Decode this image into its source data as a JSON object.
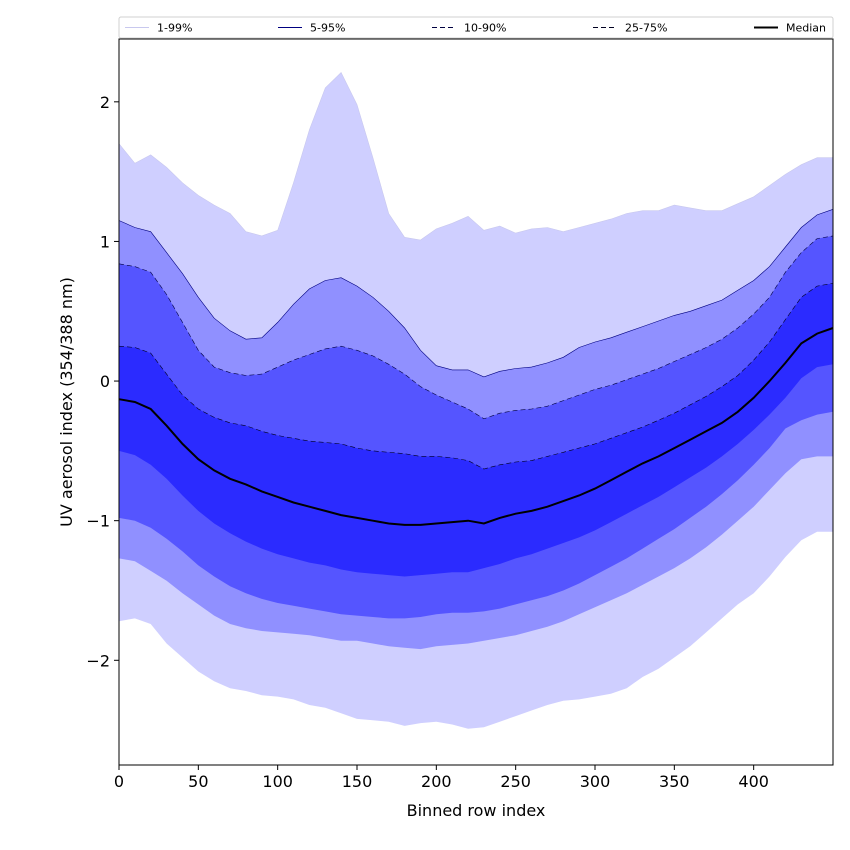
{
  "chart_data": {
    "type": "area",
    "title": "",
    "xlabel": "Binned row index",
    "ylabel": "UV aerosol index (354/388 nm)",
    "xlim": [
      0,
      450
    ],
    "ylim": [
      -2.75,
      2.45
    ],
    "x_ticks": [
      0,
      50,
      100,
      150,
      200,
      250,
      300,
      350,
      400
    ],
    "x_tick_labels": [
      "0",
      "50",
      "100",
      "150",
      "200",
      "250",
      "300",
      "350",
      "400"
    ],
    "y_ticks": [
      -2,
      -1,
      0,
      1,
      2
    ],
    "y_tick_labels": [
      "−2",
      "−1",
      "0",
      "1",
      "2"
    ],
    "grid": false,
    "legend_position": "top",
    "x": [
      0,
      10,
      20,
      30,
      40,
      50,
      60,
      70,
      80,
      90,
      100,
      110,
      120,
      130,
      140,
      150,
      160,
      170,
      180,
      190,
      200,
      210,
      220,
      230,
      240,
      250,
      260,
      270,
      280,
      290,
      300,
      310,
      320,
      330,
      340,
      350,
      360,
      370,
      380,
      390,
      400,
      410,
      420,
      430,
      440,
      450
    ],
    "series": [
      {
        "name": "1-99%",
        "color": "#cfcfff",
        "line_color": "#c8c8ee",
        "line_style": "solid",
        "upper": [
          1.7,
          1.56,
          1.62,
          1.53,
          1.42,
          1.33,
          1.26,
          1.2,
          1.07,
          1.04,
          1.08,
          1.42,
          1.8,
          2.1,
          2.21,
          1.98,
          1.6,
          1.2,
          1.03,
          1.01,
          1.09,
          1.13,
          1.18,
          1.08,
          1.11,
          1.06,
          1.09,
          1.1,
          1.07,
          1.1,
          1.13,
          1.16,
          1.2,
          1.22,
          1.22,
          1.26,
          1.24,
          1.22,
          1.22,
          1.27,
          1.32,
          1.4,
          1.48,
          1.55,
          1.6,
          1.6
        ],
        "lower": [
          -1.72,
          -1.7,
          -1.74,
          -1.88,
          -1.98,
          -2.08,
          -2.15,
          -2.2,
          -2.22,
          -2.25,
          -2.26,
          -2.28,
          -2.32,
          -2.34,
          -2.38,
          -2.42,
          -2.43,
          -2.44,
          -2.47,
          -2.45,
          -2.44,
          -2.46,
          -2.49,
          -2.48,
          -2.44,
          -2.4,
          -2.36,
          -2.32,
          -2.29,
          -2.28,
          -2.26,
          -2.24,
          -2.2,
          -2.12,
          -2.06,
          -1.98,
          -1.9,
          -1.8,
          -1.7,
          -1.6,
          -1.52,
          -1.4,
          -1.26,
          -1.14,
          -1.08,
          -1.08
        ]
      },
      {
        "name": "5-95%",
        "color": "#9090ff",
        "line_color": "#000080",
        "line_style": "solid",
        "upper": [
          1.15,
          1.1,
          1.07,
          0.92,
          0.77,
          0.6,
          0.45,
          0.36,
          0.3,
          0.31,
          0.42,
          0.55,
          0.66,
          0.72,
          0.74,
          0.68,
          0.6,
          0.5,
          0.38,
          0.22,
          0.11,
          0.08,
          0.08,
          0.03,
          0.07,
          0.09,
          0.1,
          0.13,
          0.17,
          0.24,
          0.28,
          0.31,
          0.35,
          0.39,
          0.43,
          0.47,
          0.5,
          0.54,
          0.58,
          0.65,
          0.72,
          0.82,
          0.96,
          1.1,
          1.19,
          1.23
        ],
        "lower": [
          -1.27,
          -1.29,
          -1.36,
          -1.43,
          -1.52,
          -1.6,
          -1.68,
          -1.74,
          -1.77,
          -1.79,
          -1.8,
          -1.81,
          -1.82,
          -1.84,
          -1.86,
          -1.86,
          -1.88,
          -1.9,
          -1.91,
          -1.92,
          -1.9,
          -1.89,
          -1.88,
          -1.86,
          -1.84,
          -1.82,
          -1.79,
          -1.76,
          -1.72,
          -1.67,
          -1.62,
          -1.57,
          -1.52,
          -1.46,
          -1.4,
          -1.34,
          -1.27,
          -1.19,
          -1.1,
          -1.0,
          -0.9,
          -0.78,
          -0.66,
          -0.56,
          -0.54,
          -0.54
        ]
      },
      {
        "name": "10-90%",
        "color": "#5555ff",
        "line_color": "#000040",
        "line_style": "dashed",
        "upper": [
          0.84,
          0.82,
          0.78,
          0.62,
          0.42,
          0.22,
          0.1,
          0.06,
          0.04,
          0.05,
          0.1,
          0.15,
          0.19,
          0.23,
          0.25,
          0.22,
          0.18,
          0.12,
          0.05,
          -0.04,
          -0.1,
          -0.15,
          -0.2,
          -0.27,
          -0.23,
          -0.21,
          -0.2,
          -0.18,
          -0.14,
          -0.1,
          -0.06,
          -0.03,
          0.01,
          0.05,
          0.09,
          0.14,
          0.19,
          0.24,
          0.3,
          0.38,
          0.48,
          0.6,
          0.78,
          0.92,
          1.02,
          1.04
        ],
        "lower": [
          -0.98,
          -1.0,
          -1.05,
          -1.13,
          -1.22,
          -1.32,
          -1.4,
          -1.47,
          -1.52,
          -1.56,
          -1.59,
          -1.61,
          -1.63,
          -1.65,
          -1.67,
          -1.68,
          -1.69,
          -1.7,
          -1.7,
          -1.69,
          -1.67,
          -1.66,
          -1.66,
          -1.65,
          -1.63,
          -1.6,
          -1.57,
          -1.54,
          -1.5,
          -1.45,
          -1.39,
          -1.33,
          -1.27,
          -1.2,
          -1.13,
          -1.06,
          -0.98,
          -0.9,
          -0.81,
          -0.71,
          -0.6,
          -0.48,
          -0.34,
          -0.28,
          -0.24,
          -0.22
        ]
      },
      {
        "name": "25-75%",
        "color": "#2b2bff",
        "line_color": "#000020",
        "line_style": "dashed",
        "upper": [
          0.25,
          0.24,
          0.2,
          0.05,
          -0.1,
          -0.2,
          -0.26,
          -0.3,
          -0.32,
          -0.36,
          -0.39,
          -0.41,
          -0.43,
          -0.44,
          -0.45,
          -0.48,
          -0.5,
          -0.51,
          -0.52,
          -0.54,
          -0.54,
          -0.55,
          -0.57,
          -0.63,
          -0.6,
          -0.58,
          -0.57,
          -0.54,
          -0.51,
          -0.48,
          -0.45,
          -0.41,
          -0.37,
          -0.33,
          -0.28,
          -0.23,
          -0.17,
          -0.11,
          -0.04,
          0.04,
          0.15,
          0.28,
          0.44,
          0.6,
          0.68,
          0.7
        ],
        "lower": [
          -0.5,
          -0.53,
          -0.6,
          -0.7,
          -0.82,
          -0.93,
          -1.02,
          -1.09,
          -1.15,
          -1.2,
          -1.24,
          -1.27,
          -1.3,
          -1.32,
          -1.35,
          -1.37,
          -1.38,
          -1.39,
          -1.4,
          -1.39,
          -1.38,
          -1.37,
          -1.37,
          -1.34,
          -1.31,
          -1.27,
          -1.24,
          -1.2,
          -1.16,
          -1.12,
          -1.07,
          -1.01,
          -0.95,
          -0.89,
          -0.83,
          -0.76,
          -0.69,
          -0.62,
          -0.54,
          -0.45,
          -0.35,
          -0.24,
          -0.12,
          0.02,
          0.1,
          0.12
        ]
      },
      {
        "name": "Median",
        "color": "#000000",
        "line_color": "#000000",
        "line_style": "solid",
        "values": [
          -0.13,
          -0.15,
          -0.2,
          -0.32,
          -0.45,
          -0.56,
          -0.64,
          -0.7,
          -0.74,
          -0.79,
          -0.83,
          -0.87,
          -0.9,
          -0.93,
          -0.96,
          -0.98,
          -1.0,
          -1.02,
          -1.03,
          -1.03,
          -1.02,
          -1.01,
          -1.0,
          -1.02,
          -0.98,
          -0.95,
          -0.93,
          -0.9,
          -0.86,
          -0.82,
          -0.77,
          -0.71,
          -0.65,
          -0.59,
          -0.54,
          -0.48,
          -0.42,
          -0.36,
          -0.3,
          -0.22,
          -0.12,
          0.0,
          0.13,
          0.27,
          0.34,
          0.38
        ]
      }
    ]
  }
}
